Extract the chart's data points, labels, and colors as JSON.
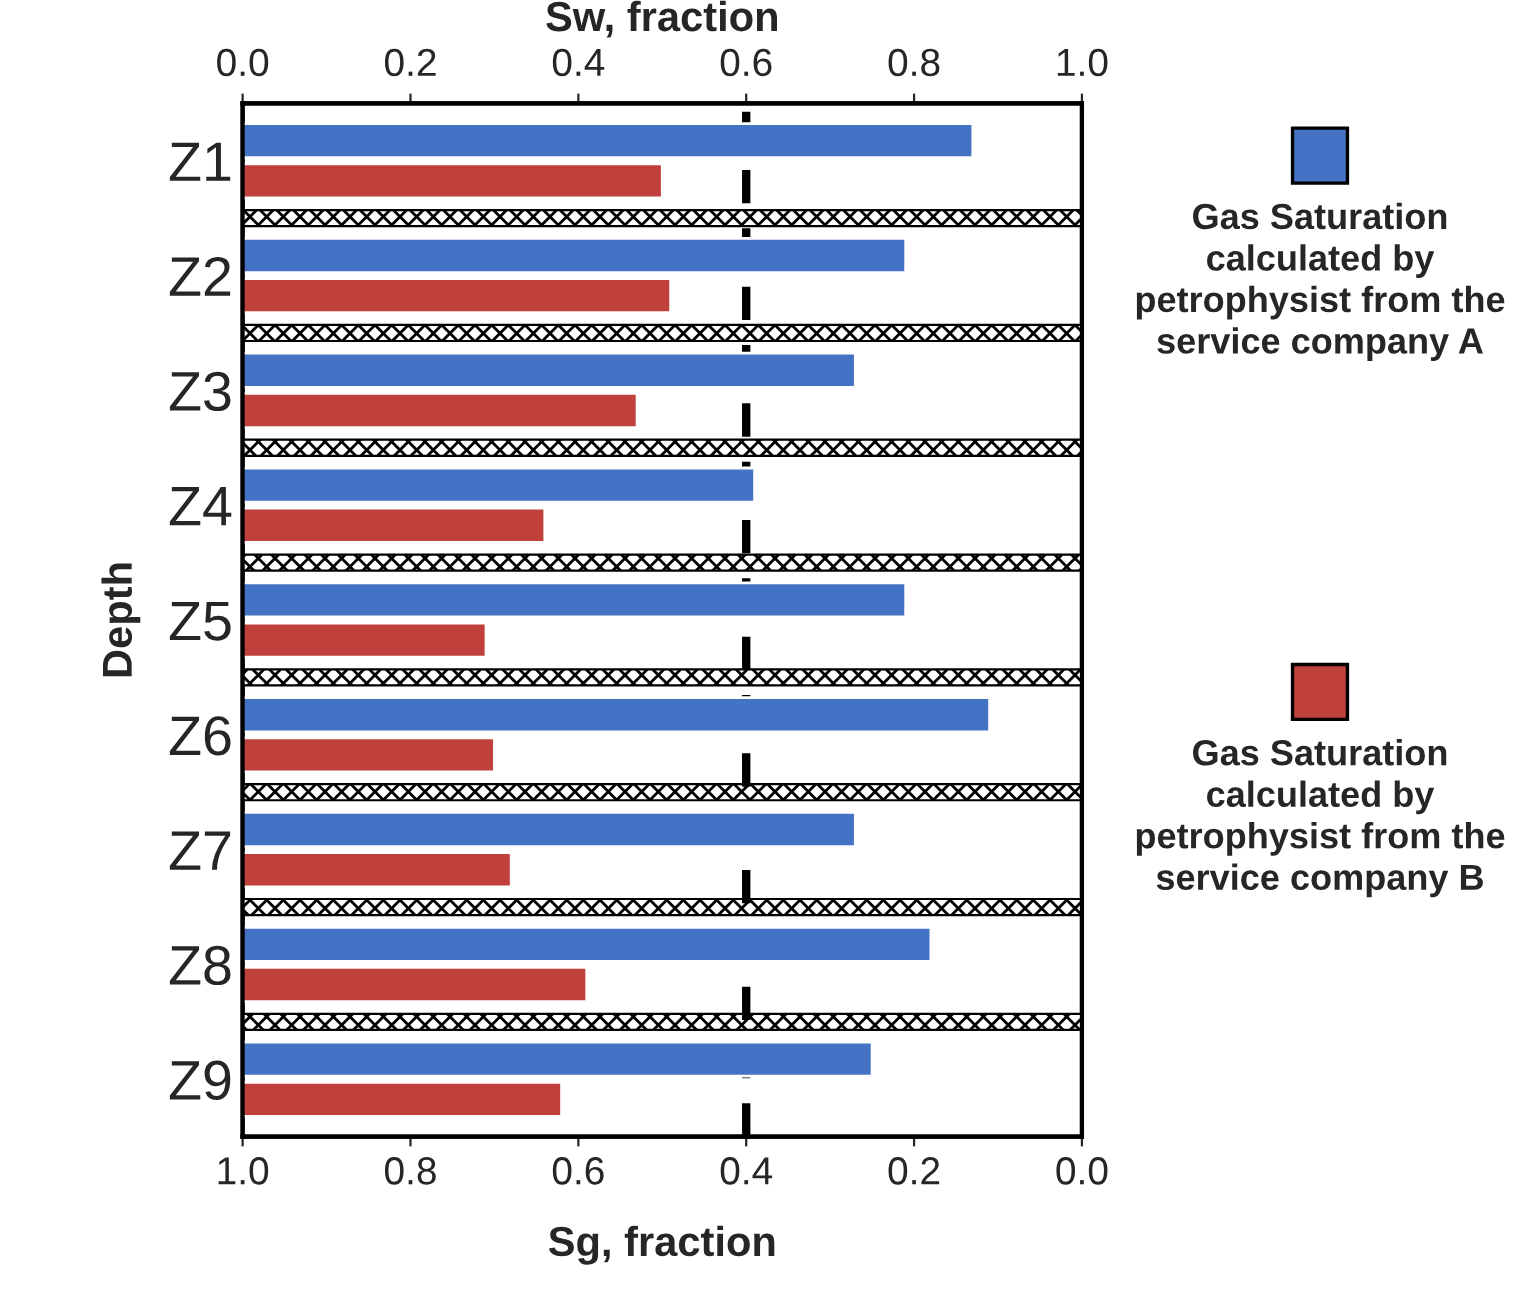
{
  "chart_data": {
    "type": "bar",
    "orientation": "horizontal",
    "xlabel": "Sg, fraction",
    "x2label": "Sw, fraction",
    "ylabel": "Depth",
    "categories": [
      "Z1",
      "Z2",
      "Z3",
      "Z4",
      "Z5",
      "Z6",
      "Z7",
      "Z8",
      "Z9"
    ],
    "xlim": [
      1.0,
      0.0
    ],
    "xticks": [
      {
        "value": 1.0,
        "label": "1.0"
      },
      {
        "value": 0.8,
        "label": "0.8"
      },
      {
        "value": 0.6,
        "label": "0.6"
      },
      {
        "value": 0.4,
        "label": "0.4"
      },
      {
        "value": 0.2,
        "label": "0.2"
      },
      {
        "value": 0.0,
        "label": "0.0"
      }
    ],
    "x2lim": [
      0.0,
      1.0
    ],
    "x2ticks": [
      {
        "value": 0.0,
        "label": "0.0"
      },
      {
        "value": 0.2,
        "label": "0.2"
      },
      {
        "value": 0.4,
        "label": "0.4"
      },
      {
        "value": 0.6,
        "label": "0.6"
      },
      {
        "value": 0.8,
        "label": "0.8"
      },
      {
        "value": 1.0,
        "label": "1.0"
      }
    ],
    "series": [
      {
        "name": "Gas Saturation calculated by petrophysist from the service company A",
        "color": "#4472c4",
        "axis": "x2",
        "values": [
          0.87,
          0.79,
          0.73,
          0.61,
          0.79,
          0.89,
          0.73,
          0.82,
          0.75
        ]
      },
      {
        "name": "Gas Saturation calculated by petrophysist from the service company B",
        "color": "#c0403c",
        "axis": "x2",
        "values": [
          0.5,
          0.51,
          0.47,
          0.36,
          0.29,
          0.3,
          0.32,
          0.41,
          0.38
        ]
      }
    ],
    "ref_lines": [
      {
        "axis": "x",
        "value": 0.4,
        "color": "#000000",
        "line_style": "dashed"
      }
    ],
    "bands": [
      {
        "axis": "y",
        "from": "Z1",
        "to": "Z2",
        "color": "#000000"
      },
      {
        "axis": "y",
        "from": "Z2",
        "to": "Z3",
        "color": "#000000"
      },
      {
        "axis": "y",
        "from": "Z3",
        "to": "Z4",
        "color": "#000000"
      },
      {
        "axis": "y",
        "from": "Z4",
        "to": "Z5",
        "color": "#000000"
      },
      {
        "axis": "y",
        "from": "Z5",
        "to": "Z6",
        "color": "#000000"
      },
      {
        "axis": "y",
        "from": "Z6",
        "to": "Z7",
        "color": "#000000"
      },
      {
        "axis": "y",
        "from": "Z7",
        "to": "Z8",
        "color": "#000000"
      },
      {
        "axis": "y",
        "from": "Z8",
        "to": "Z9",
        "color": "#000000"
      }
    ],
    "legend": "right",
    "grid": false
  }
}
